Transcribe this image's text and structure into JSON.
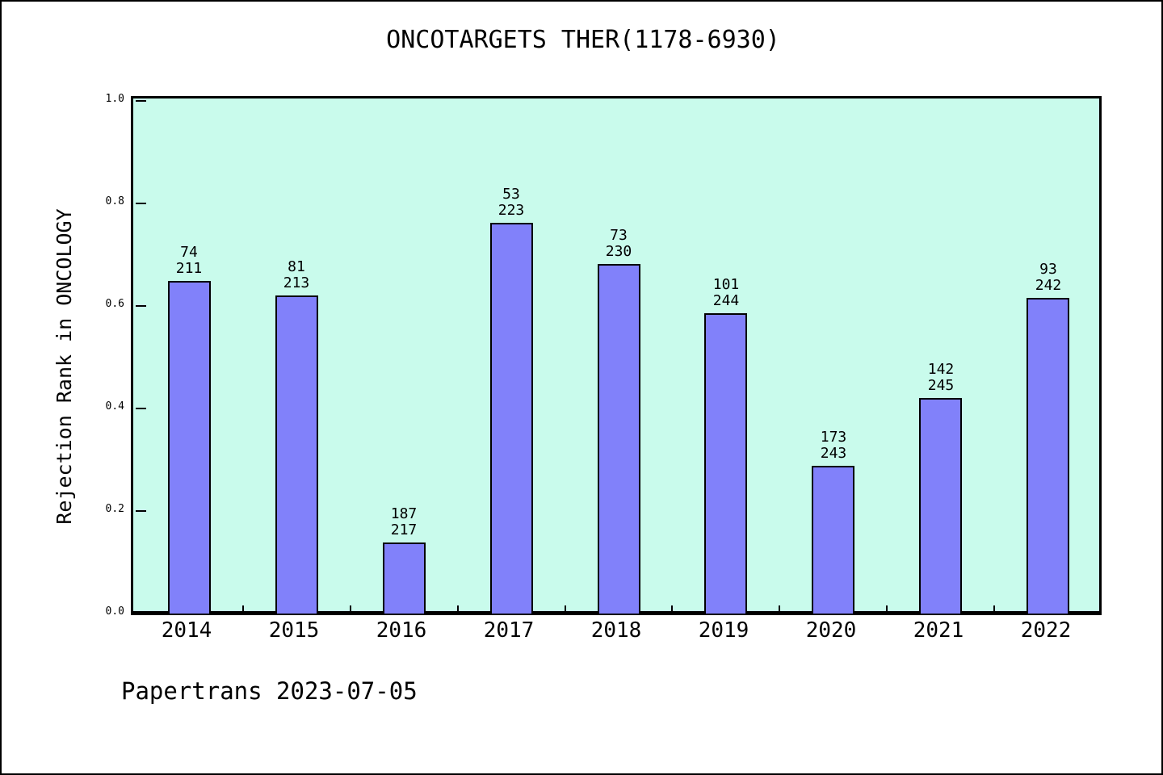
{
  "page": {
    "title": "ONCOTARGETS THER(1178-6930)",
    "footer": "Papertrans 2023-07-05"
  },
  "chart_data": {
    "type": "bar",
    "title": "ONCOTARGETS THER(1178-6930)",
    "xlabel": "",
    "ylabel": "Rejection Rank in ONCOLOGY",
    "categories": [
      "2014",
      "2015",
      "2016",
      "2017",
      "2018",
      "2019",
      "2020",
      "2021",
      "2022"
    ],
    "series": [
      {
        "name": "Rejection Rank in ONCOLOGY",
        "values": [
          0.6493,
          0.6197,
          0.1382,
          0.7623,
          0.6826,
          0.5861,
          0.2881,
          0.4204,
          0.6157
        ],
        "bar_labels": [
          [
            "74",
            "211"
          ],
          [
            "81",
            "213"
          ],
          [
            "187",
            "217"
          ],
          [
            "53",
            "223"
          ],
          [
            "73",
            "230"
          ],
          [
            "101",
            "244"
          ],
          [
            "173",
            "243"
          ],
          [
            "142",
            "245"
          ],
          [
            "93",
            "242"
          ]
        ]
      }
    ],
    "ylim": [
      0.0,
      1.0
    ],
    "ytick_labels": [
      "0.0",
      "0.2",
      "0.4",
      "0.6",
      "0.8",
      "1.0"
    ],
    "grid": false,
    "legend": "none",
    "layout_hints": {
      "bar_width_fraction": 0.4,
      "x_minor_ticks": "category-boundaries"
    },
    "colors": {
      "bar_fill": "#8181fa",
      "bar_border": "#000000",
      "plot_background": "#c9fbec",
      "page_background": "#ffffff",
      "text": "#000000"
    }
  }
}
